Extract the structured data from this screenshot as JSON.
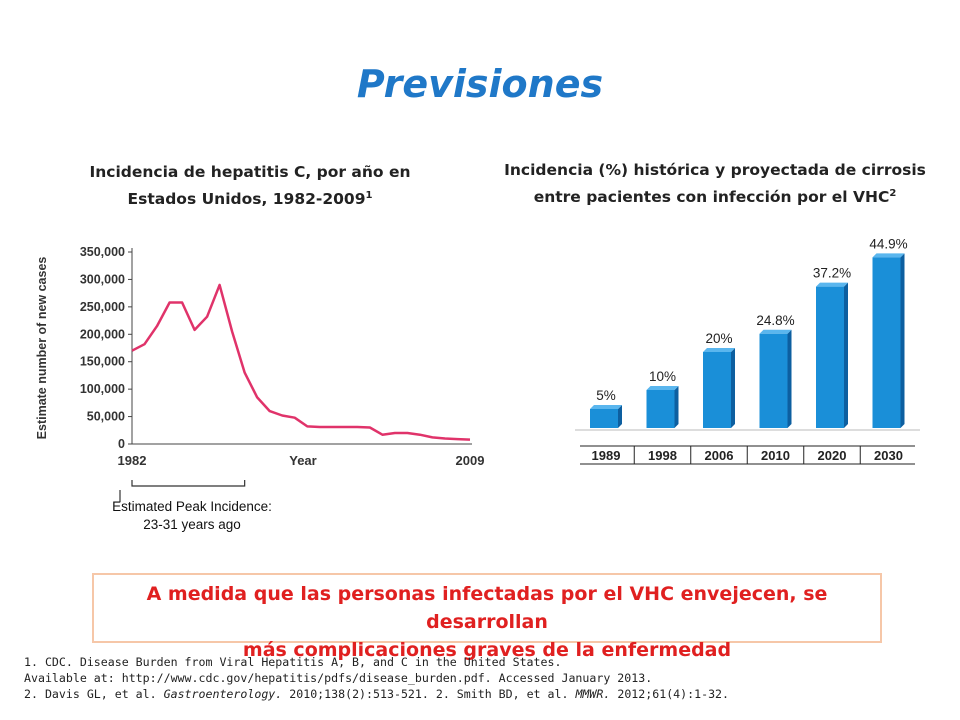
{
  "slide": {
    "title": "Previsiones",
    "chart1_title_line1": "Incidencia de hepatitis C, por año en",
    "chart1_title_line2": "Estados Unidos, 1982-2009",
    "chart1_title_sup": "1",
    "chart2_title_line1": "Incidencia (%) histórica y proyectada de cirrosis",
    "chart2_title_line2": "entre pacientes con infección por el VHC",
    "chart2_title_sup": "2",
    "callout_line1": "A medida que las personas infectadas por el VHC envejecen, se desarrollan",
    "callout_line2": "más complicaciones graves de la enfermedad",
    "ref1_line1": "1. CDC. Disease Burden from Viral Hepatitis A, B, and C in the United States.",
    "ref1_line2": "Available at: http://www.cdc.gov/hepatitis/pdfs/disease_burden.pdf.  Accessed January 2013.",
    "ref2_a": "2. Davis GL, et al. ",
    "ref2_journal1": "Gastroenterology.",
    "ref2_b": " 2010;138(2):513-521.  2. Smith BD, et al. ",
    "ref2_journal2": "MMWR.",
    "ref2_c": " 2012;61(4):1-32.",
    "colors": {
      "title": "#1f78c8",
      "line": "#e0336a",
      "bar": "#1a8fd8",
      "callout_text": "#e02020",
      "callout_border": "#f6c7a8"
    }
  },
  "chart_data": [
    {
      "type": "line",
      "title": "Incidencia de hepatitis C, por año en Estados Unidos, 1982-2009",
      "ylabel": "Estimate number of new cases",
      "xlabel": "Year",
      "xlim": [
        1982,
        2009
      ],
      "ylim": [
        0,
        350000
      ],
      "x_tick_labels": [
        "1982",
        "2009"
      ],
      "y_ticks": [
        0,
        50000,
        100000,
        150000,
        200000,
        250000,
        300000,
        350000
      ],
      "y_tick_labels": [
        "0",
        "50,000",
        "100,000",
        "150,000",
        "200,000",
        "250,000",
        "300,000",
        "350,000"
      ],
      "x": [
        1982,
        1983,
        1984,
        1985,
        1986,
        1987,
        1988,
        1989,
        1990,
        1991,
        1992,
        1993,
        1994,
        1995,
        1996,
        1997,
        1998,
        1999,
        2000,
        2001,
        2002,
        2003,
        2004,
        2005,
        2006,
        2007,
        2008,
        2009
      ],
      "y": [
        170000,
        182000,
        215000,
        258000,
        258000,
        208000,
        232000,
        290000,
        205000,
        130000,
        85000,
        60000,
        52000,
        48000,
        32000,
        31000,
        31000,
        31000,
        31000,
        30000,
        17000,
        20000,
        20000,
        17000,
        12000,
        10000,
        9000,
        8000
      ],
      "bracket_label_line1": "Estimated Peak Incidence:",
      "bracket_label_line2": "23-31 years ago",
      "bracket_range": [
        1982,
        1991
      ]
    },
    {
      "type": "bar",
      "title": "Incidencia (%) histórica y proyectada de cirrosis entre pacientes con infección por el VHC",
      "categories": [
        "1989",
        "1998",
        "2006",
        "2010",
        "2020",
        "2030"
      ],
      "values": [
        5,
        10,
        20,
        24.8,
        37.2,
        44.9
      ],
      "data_labels": [
        "5%",
        "10%",
        "20%",
        "24.8%",
        "37.2%",
        "44.9%"
      ],
      "ylim": [
        0,
        50
      ]
    }
  ]
}
